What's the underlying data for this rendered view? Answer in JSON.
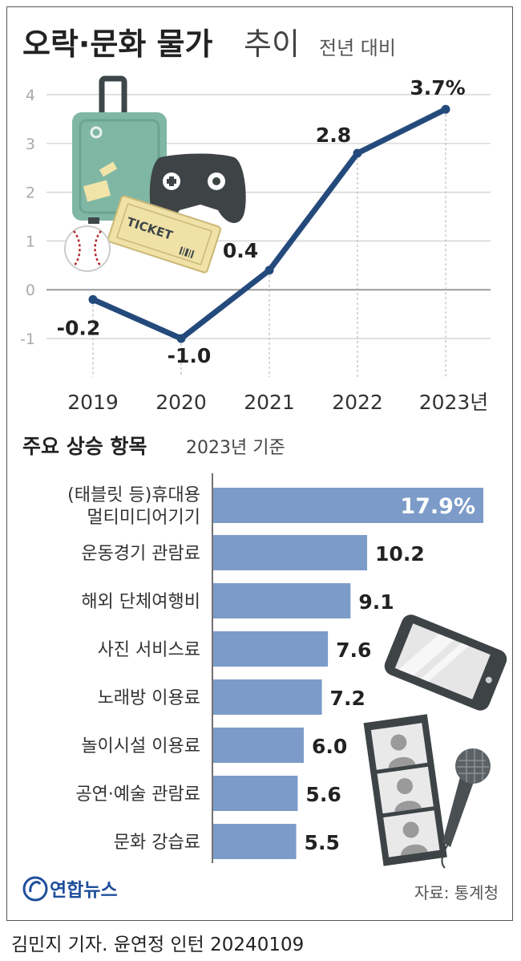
{
  "header": {
    "title_main": "오락·문화 물가",
    "title_light": "추이",
    "subtitle": "전년 대비"
  },
  "colors": {
    "line": "#244a7c",
    "bar": "#7c9bc8",
    "grid": "#cfcfcf",
    "zero_line": "#9a9a9a",
    "text": "#222222",
    "logo": "#1f4e9c"
  },
  "chart_data": [
    {
      "type": "line",
      "x": [
        "2019",
        "2020",
        "2021",
        "2022",
        "2023"
      ],
      "x_tick_labels": [
        "2019",
        "2020",
        "2021",
        "2022",
        "2023년"
      ],
      "values": [
        -0.2,
        -1.0,
        0.4,
        2.8,
        3.7
      ],
      "data_labels": [
        "-0.2",
        "-1.0",
        "0.4",
        "2.8",
        "3.7%"
      ],
      "ylim": [
        -1,
        4
      ],
      "yticks": [
        -1,
        0,
        1,
        2,
        3,
        4
      ],
      "grid": true
    },
    {
      "type": "bar",
      "orientation": "horizontal",
      "title": "주요 상승 항목",
      "subtitle": "2023년 기준",
      "categories": [
        [
          "(태블릿 등)휴대용",
          "멀티미디어기기"
        ],
        [
          "운동경기 관람료"
        ],
        [
          "해외 단체여행비"
        ],
        [
          "사진 서비스료"
        ],
        [
          "노래방 이용료"
        ],
        [
          "놀이시설 이용료"
        ],
        [
          "공연·예술 관람료"
        ],
        [
          "문화 강습료"
        ]
      ],
      "values": [
        17.9,
        10.2,
        9.1,
        7.6,
        7.2,
        6.0,
        5.6,
        5.5
      ],
      "data_labels": [
        "17.9%",
        "10.2",
        "9.1",
        "7.6",
        "7.2",
        "6.0",
        "5.6",
        "5.5"
      ]
    }
  ],
  "illustration": {
    "ticket_text": "TICKET",
    "icons": [
      "suitcase-icon",
      "game-controller-icon",
      "ticket-icon",
      "baseball-icon",
      "tablet-icon",
      "photo-strip-icon",
      "microphone-icon"
    ]
  },
  "footer": {
    "logo_text": "연합뉴스",
    "source": "자료: 통계청",
    "byline": "김민지 기자. 윤연정 인턴  20240109"
  }
}
